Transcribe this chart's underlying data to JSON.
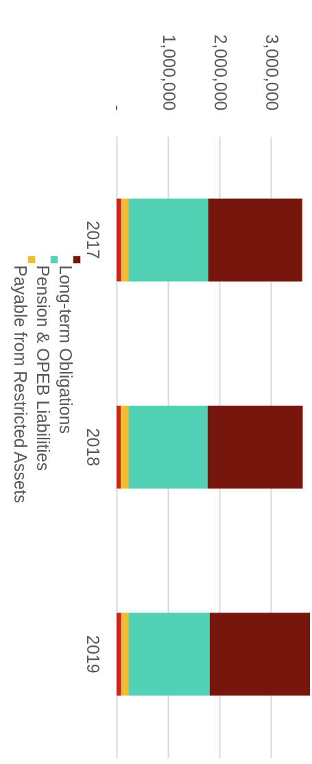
{
  "chart_data": {
    "type": "bar",
    "stacked": true,
    "orientation": "horizontal",
    "categories": [
      "2017",
      "2018",
      "2019"
    ],
    "series": [
      {
        "color": "#c8281a",
        "values": [
          90000,
          80000,
          90000
        ]
      },
      {
        "name": "Payable from Restricted Assets",
        "color": "#eebd33",
        "values": [
          140000,
          150000,
          140000
        ]
      },
      {
        "name": "Pension & OPEB Liabilities",
        "color": "#52d1b5",
        "values": [
          1550000,
          1540000,
          1580000
        ]
      },
      {
        "name": "Long-term Obligations",
        "color": "#77160c",
        "values": [
          1830000,
          1850000,
          1950000
        ]
      }
    ],
    "xlim": [
      0,
      3800000
    ],
    "xticks": [
      {
        "value": 0,
        "label": "-"
      },
      {
        "value": 1000000,
        "label": "1,000,000"
      },
      {
        "value": 2000000,
        "label": "2,000,000"
      },
      {
        "value": 3000000,
        "label": "3,000,000"
      }
    ],
    "grid": "x",
    "legend": "left"
  }
}
